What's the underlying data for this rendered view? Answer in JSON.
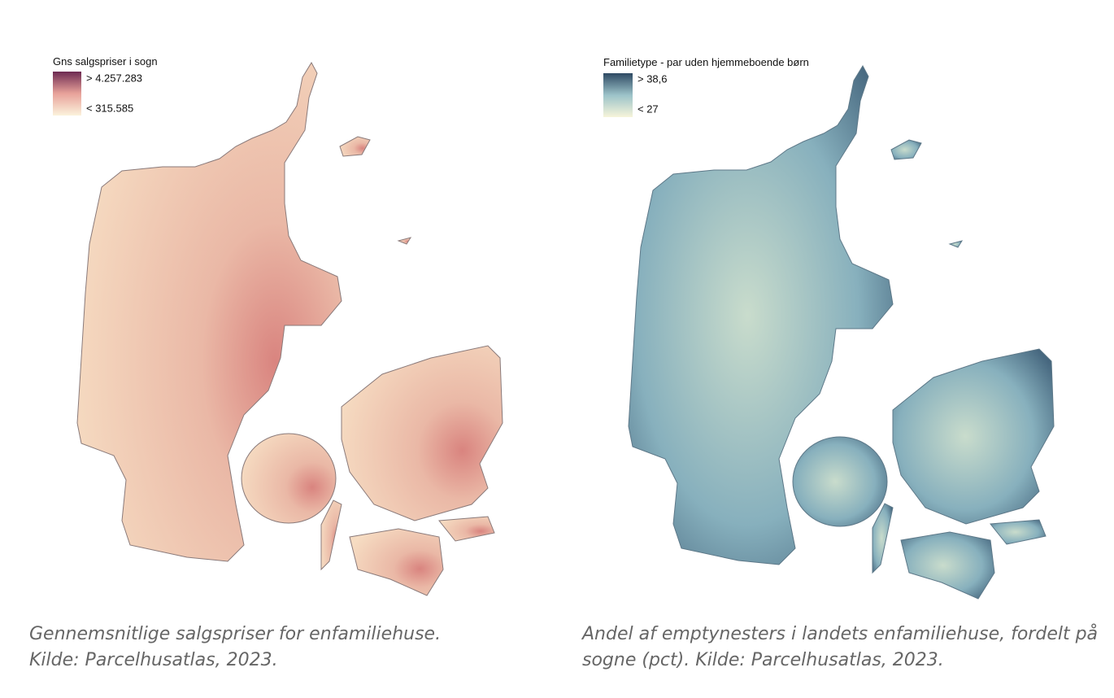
{
  "maps": [
    {
      "legend_title": "Gns salgspriser i sogn",
      "legend_max_label": "> 4.257.283",
      "legend_min_label": "< 315.585",
      "caption": [
        "Gennemsnitlige salgspriser for enfamiliehuse.",
        "Kilde: Parcelhusatlas, 2023."
      ]
    },
    {
      "legend_title": "Familietype - par uden hjemmeboende børn",
      "legend_max_label": "> 38,6",
      "legend_min_label": "< 27",
      "caption": [
        "Andel af emptynesters i landets enfamiliehuse, fordelt på",
        "sogne (pct). Kilde: Parcelhusatlas, 2023."
      ]
    }
  ]
}
